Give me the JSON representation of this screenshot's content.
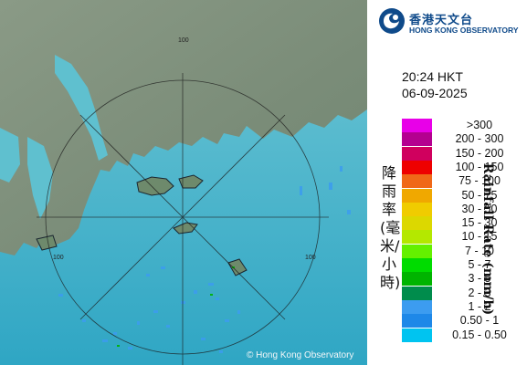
{
  "header": {
    "org_name_zh": "香港天文台",
    "org_name_en": "HONG KONG OBSERVATORY",
    "brand_color": "#0f4a8a"
  },
  "timestamp": {
    "time": "20:24 HKT",
    "date": "06-09-2025"
  },
  "map": {
    "range_ring_labels": [
      "100",
      "100",
      "100"
    ],
    "copyright": "© Hong Kong Observatory",
    "sea_color": "#39b6cf",
    "land_color": "#7b8f79"
  },
  "legend": {
    "axis_label_zh": "降雨率(毫米/小時)",
    "axis_label_en": "Rainfall Rate (mm/h)",
    "scale": [
      {
        "label": ">300",
        "color": "#e800e8"
      },
      {
        "label": "200 - 300",
        "color": "#b40090"
      },
      {
        "label": "150 - 200",
        "color": "#d0005e"
      },
      {
        "label": "100 - 150",
        "color": "#ee0000"
      },
      {
        "label": "75 - 100",
        "color": "#f06818"
      },
      {
        "label": "50 - 75",
        "color": "#f0a800"
      },
      {
        "label": "30 - 50",
        "color": "#f0cc00"
      },
      {
        "label": "15 - 30",
        "color": "#dcd800"
      },
      {
        "label": "10 - 15",
        "color": "#b4e800"
      },
      {
        "label": "7 - 10",
        "color": "#64f000"
      },
      {
        "label": "5 - 7",
        "color": "#00dc00"
      },
      {
        "label": "3 - 5",
        "color": "#00b400"
      },
      {
        "label": "2 - 3",
        "color": "#008c4c"
      },
      {
        "label": "1 - 2",
        "color": "#3c9cf0"
      },
      {
        "label": "0.50 - 1",
        "color": "#1e88e8"
      },
      {
        "label": "0.15 - 0.50",
        "color": "#00c4f0"
      }
    ]
  }
}
